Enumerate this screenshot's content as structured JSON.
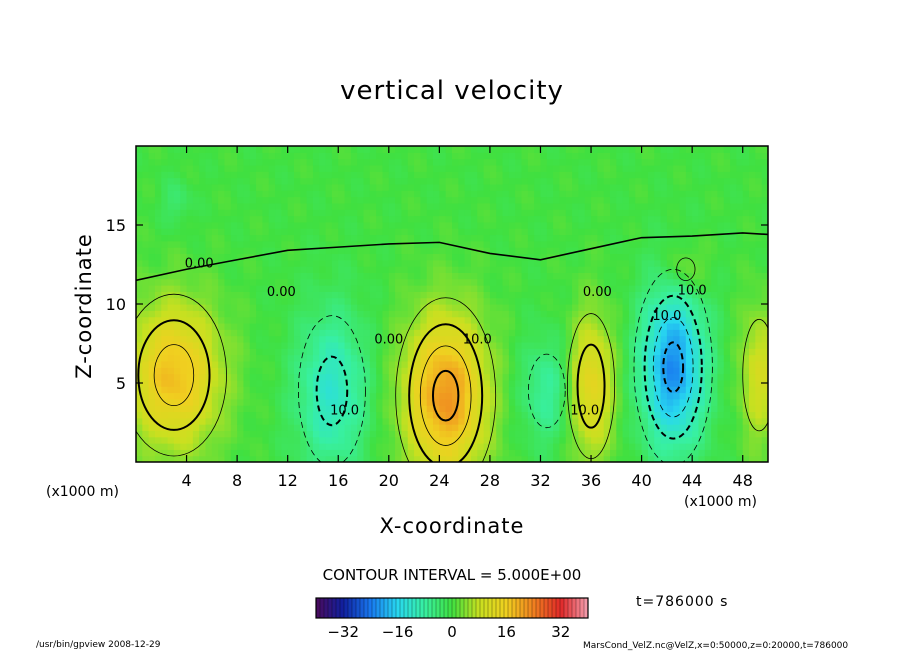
{
  "footer": {
    "left": "/usr/bin/gpview   2008-12-29",
    "right": "MarsCond_VelZ.nc@VelZ,x=0:50000,z=0:20000,t=786000"
  },
  "time_label": "t=786000 s",
  "contour_interval_label": "CONTOUR INTERVAL = 5.000E+00",
  "chart_data": {
    "type": "heatmap",
    "title": "vertical velocity",
    "xlabel": "X-coordinate",
    "ylabel": "Z-coordinate",
    "x_unit": "(x1000 m)",
    "y_unit": "(x1000 m)",
    "xlim": [
      0,
      50
    ],
    "ylim": [
      0,
      20
    ],
    "x_ticks": [
      4,
      8,
      12,
      16,
      20,
      24,
      28,
      32,
      36,
      40,
      44,
      48
    ],
    "y_ticks": [
      5,
      10,
      15
    ],
    "colorbar": {
      "range": [
        -40,
        40
      ],
      "ticks": [
        -32,
        -16,
        0,
        16,
        32
      ],
      "colors": [
        "#4b0a5c",
        "#1020a0",
        "#1878f0",
        "#28d8f0",
        "#38f0a0",
        "#40e040",
        "#c8e020",
        "#f0d020",
        "#f08020",
        "#e02828",
        "#f4a0b0"
      ]
    },
    "contour_interval": 5,
    "contour_labels": [
      "0.00",
      "0.00",
      "0.00",
      "0.00",
      "10.0",
      "10.0",
      "10.0",
      "10.0",
      "10.0"
    ],
    "features": [
      {
        "x": 3,
        "z": 5.5,
        "value": 18,
        "sx": 2.6,
        "sz": 3.2
      },
      {
        "x": 15.5,
        "z": 4.5,
        "value": -12,
        "sx": 2.0,
        "sz": 3.6
      },
      {
        "x": 24.5,
        "z": 4.2,
        "value": 22,
        "sx": 2.3,
        "sz": 3.6
      },
      {
        "x": 32.5,
        "z": 4.5,
        "value": -8,
        "sx": 1.5,
        "sz": 2.4
      },
      {
        "x": 36,
        "z": 4.8,
        "value": 14,
        "sx": 1.3,
        "sz": 3.2
      },
      {
        "x": 42.5,
        "z": 6.0,
        "value": -22,
        "sx": 1.8,
        "sz": 3.6
      },
      {
        "x": 43.5,
        "z": 12.2,
        "value": 6,
        "sx": 1.2,
        "sz": 1.2
      },
      {
        "x": 49.3,
        "z": 5.5,
        "value": 10,
        "sx": 1.1,
        "sz": 3.0
      },
      {
        "x": 3.2,
        "z": 16.5,
        "value": -4,
        "sx": 0.8,
        "sz": 1.0
      }
    ]
  }
}
